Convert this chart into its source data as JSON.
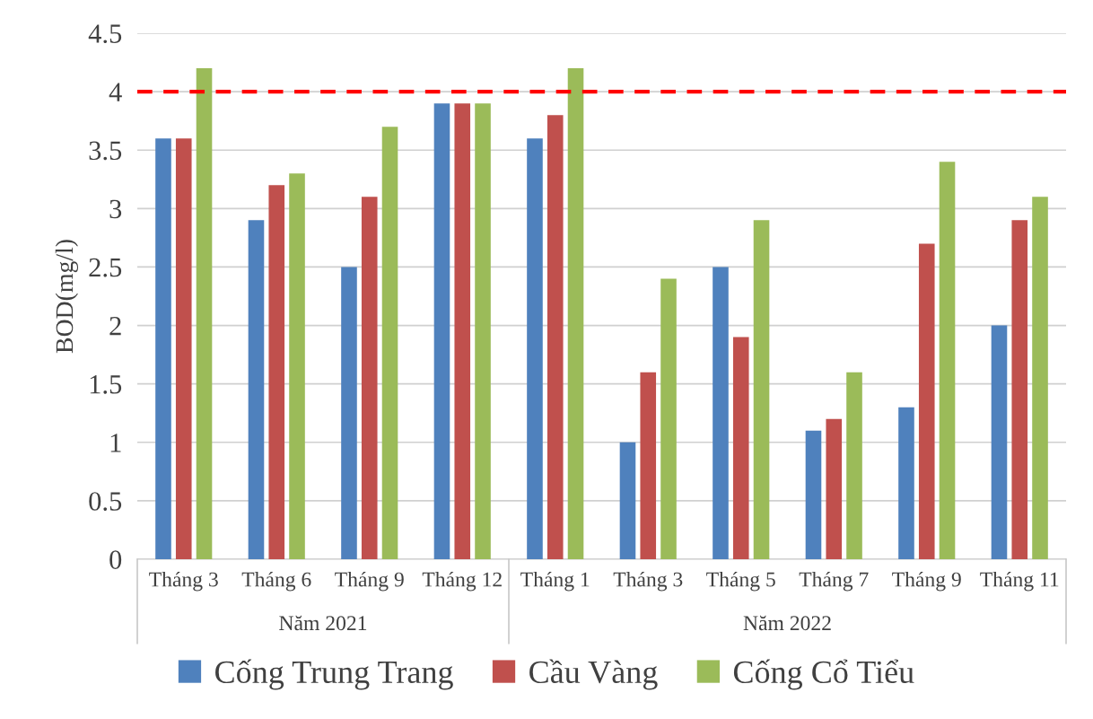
{
  "chart_data": {
    "type": "bar",
    "ylabel": "BOD(mg/l)",
    "categories": [
      "Tháng 3",
      "Tháng 6",
      "Tháng 9",
      "Tháng 12",
      "Tháng 1",
      "Tháng 3",
      "Tháng 5",
      "Tháng 7",
      "Tháng 9",
      "Tháng 11"
    ],
    "series": [
      {
        "name": "Cống Trung Trang",
        "color": "#4f81bd",
        "values": [
          3.6,
          2.9,
          2.5,
          3.9,
          3.6,
          1.0,
          2.5,
          1.1,
          1.3,
          2.0
        ]
      },
      {
        "name": "Cầu Vàng",
        "color": "#c0504d",
        "values": [
          3.6,
          3.2,
          3.1,
          3.9,
          3.8,
          1.6,
          1.9,
          1.2,
          2.7,
          2.9
        ]
      },
      {
        "name": "Cống Cổ Tiểu",
        "color": "#9bbb59",
        "values": [
          4.2,
          3.3,
          3.7,
          3.9,
          4.2,
          2.4,
          2.9,
          1.6,
          3.4,
          3.1
        ]
      }
    ],
    "ylim": [
      0,
      4.5
    ],
    "yticks": [
      0,
      0.5,
      1,
      1.5,
      2,
      2.5,
      3,
      3.5,
      4,
      4.5
    ],
    "grid": "y",
    "legend": "bottom",
    "ref_lines": [
      {
        "axis": "y",
        "value": 4,
        "color": "#ff0000",
        "line_style": "dashed"
      }
    ],
    "annotations": [
      "Năm 2021",
      "Năm 2022"
    ]
  }
}
